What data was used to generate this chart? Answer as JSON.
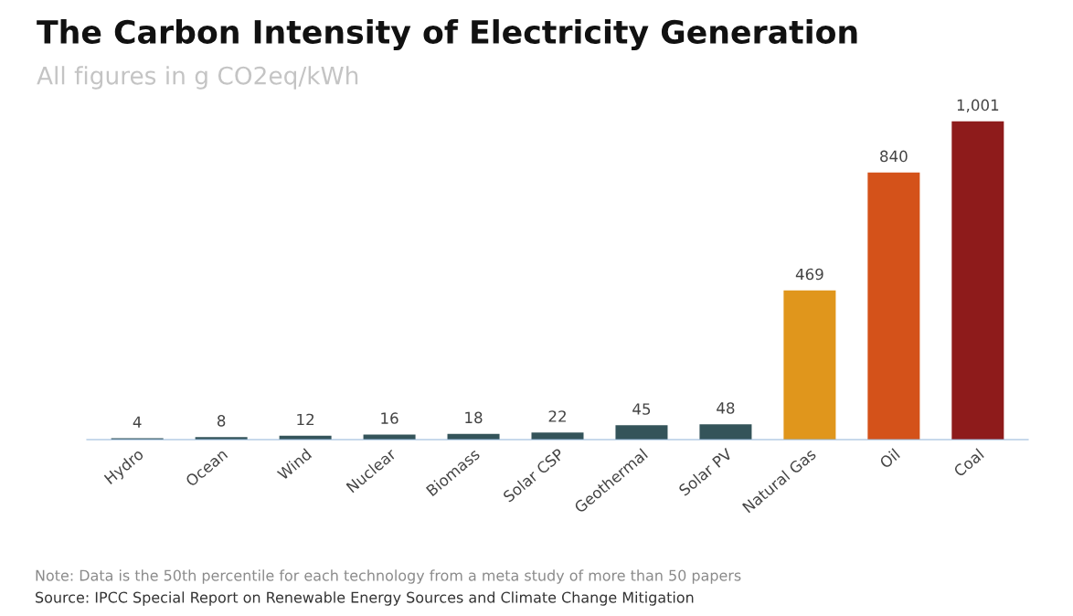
{
  "chart_data": {
    "type": "bar",
    "title": "The Carbon Intensity of Electricity Generation",
    "subtitle": "All figures in g CO2eq/kWh",
    "categories": [
      "Hydro",
      "Ocean",
      "Wind",
      "Nuclear",
      "Biomass",
      "Solar CSP",
      "Geothermal",
      "Solar PV",
      "Natural Gas",
      "Oil",
      "Coal"
    ],
    "values": [
      4,
      8,
      12,
      16,
      18,
      22,
      45,
      48,
      469,
      840,
      1001
    ],
    "colors": [
      "#34545a",
      "#34545a",
      "#34545a",
      "#34545a",
      "#34545a",
      "#34545a",
      "#34545a",
      "#34545a",
      "#e0961c",
      "#d4521a",
      "#8e1b1b"
    ],
    "value_labels": [
      "4",
      "8",
      "12",
      "16",
      "18",
      "22",
      "45",
      "48",
      "469",
      "840",
      "1,001"
    ],
    "grid": false,
    "legend": false,
    "tick_labels": "x",
    "annotations": [
      "Note: Data is the 50th percentile for each technology from a meta study of more than 50 papers",
      "Source: IPCC Special Report on Renewable Energy Sources and Climate Change Mitigation"
    ]
  }
}
